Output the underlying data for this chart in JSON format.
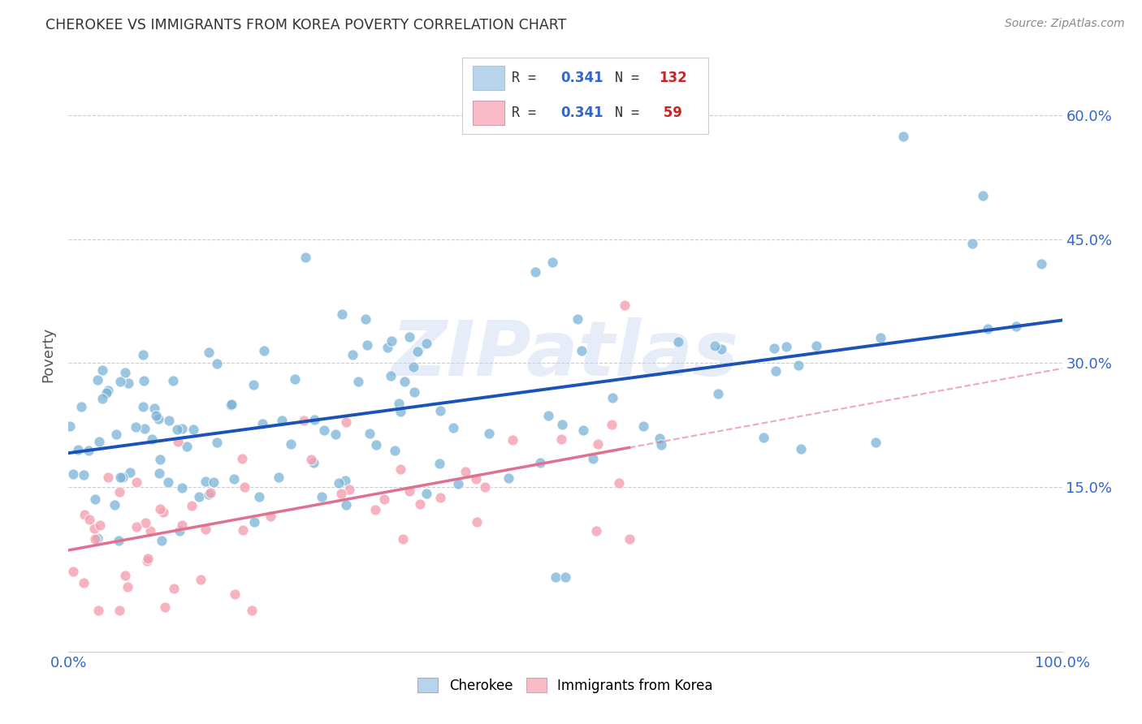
{
  "title": "CHEROKEE VS IMMIGRANTS FROM KOREA POVERTY CORRELATION CHART",
  "source": "Source: ZipAtlas.com",
  "ylabel": "Poverty",
  "yticks": [
    "15.0%",
    "30.0%",
    "45.0%",
    "60.0%"
  ],
  "ytick_vals": [
    0.15,
    0.3,
    0.45,
    0.6
  ],
  "xlim": [
    0.0,
    1.0
  ],
  "ylim": [
    -0.05,
    0.67
  ],
  "cherokee_color": "#7ab3d8",
  "korea_color": "#f4a0b0",
  "legend_cherokee_color": "#b8d4ed",
  "legend_korea_color": "#f9bbc8",
  "cherokee_line_color": "#1a52b8",
  "korea_line_color": "#e07090",
  "R_color": "#3366cc",
  "N_color": "#cc2222",
  "cherokee_R": "0.341",
  "cherokee_N": "132",
  "korea_R": "0.341",
  "korea_N": "59",
  "watermark": "ZIPatlas",
  "cherokee_label": "Cherokee",
  "korea_label": "Immigrants from Korea",
  "title_color": "#333333",
  "source_color": "#888888",
  "ylabel_color": "#555555",
  "grid_color": "#cccccc",
  "xtick_color": "#3366cc",
  "ytick_right_color": "#3366cc"
}
